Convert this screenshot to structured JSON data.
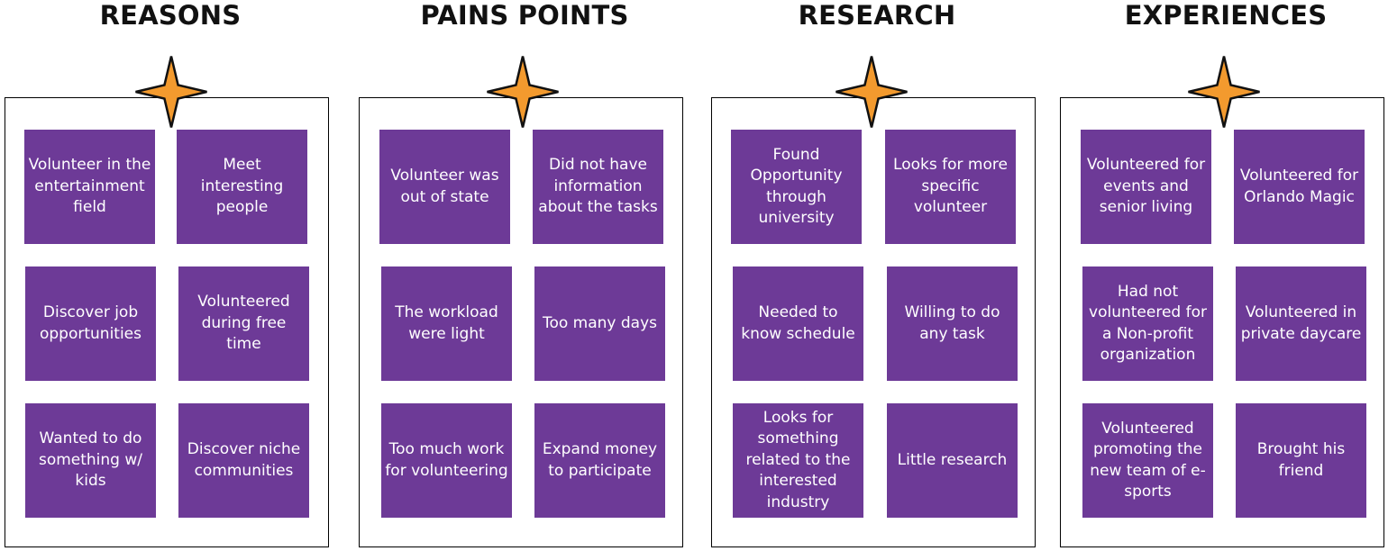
{
  "columns": [
    {
      "title": "REASONS",
      "notes": [
        "Volunteer in the entertainment field",
        "Meet interesting people",
        "Discover job opportunities",
        "Volunteered during free time",
        "Wanted to do something w/ kids",
        "Discover niche communities"
      ]
    },
    {
      "title": "PAINS POINTS",
      "notes": [
        "Volunteer was out of state",
        "Did not have information about the tasks",
        "The workload were light",
        "Too many days",
        "Too much work for volunteering",
        "Expand money to participate"
      ]
    },
    {
      "title": "RESEARCH",
      "notes": [
        "Found Opportunity through university",
        "Looks for more specific volunteer",
        "Needed to know schedule",
        "Willing to do any task",
        "Looks for something related to the interested industry",
        "Little research"
      ]
    },
    {
      "title": "EXPERIENCES",
      "notes": [
        "Volunteered for events and senior living",
        "Volunteered for Orlando Magic",
        "Had not volunteered for a Non-profit organization",
        "Volunteered in private daycare",
        "Volunteered promoting the new team of e-sports",
        "Brought his friend"
      ]
    }
  ],
  "colors": {
    "note_fill": "#6d3a97",
    "note_text": "#ffffff",
    "star_fill": "#f39a2e",
    "star_stroke": "#111111",
    "box_border": "#000000"
  },
  "icons": {
    "column_marker": "star-icon"
  }
}
